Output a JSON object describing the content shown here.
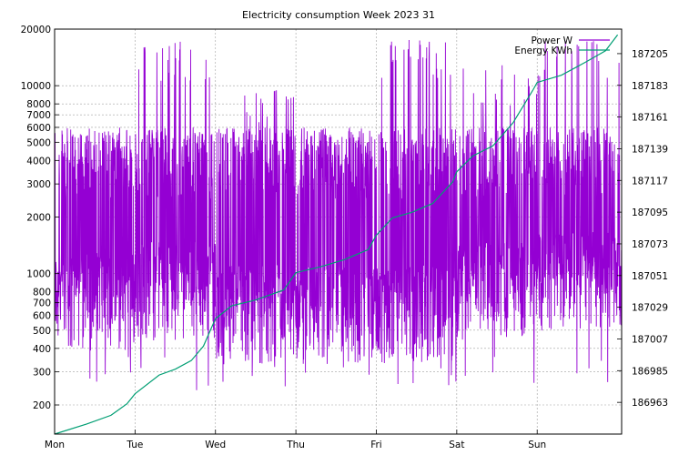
{
  "chart_data": {
    "type": "line",
    "title": "Electricity consumption Week 2023 31",
    "xlabel": "",
    "ylabel": "",
    "y2label": "",
    "x_ticks": [
      "Mon",
      "Tue",
      "Wed",
      "Thu",
      "Fri",
      "Sat",
      "Sun"
    ],
    "x_range_days": [
      0,
      7.05
    ],
    "y_scale": "log",
    "y_range": [
      140,
      20000
    ],
    "y_ticks": [
      200,
      300,
      400,
      500,
      600,
      700,
      800,
      1000,
      2000,
      3000,
      4000,
      5000,
      6000,
      7000,
      8000,
      10000,
      20000
    ],
    "y_tick_labels": [
      "200",
      "300",
      "400",
      "500",
      "600",
      "700",
      "800",
      "1000",
      "2000",
      "3000",
      "4000",
      "5000",
      "6000",
      "7000",
      "8000",
      "10000",
      "20000"
    ],
    "y2_range": [
      186941,
      187222
    ],
    "y2_ticks": [
      186963,
      186985,
      187007,
      187029,
      187051,
      187073,
      187095,
      187117,
      187139,
      187161,
      187183,
      187205
    ],
    "grid": true,
    "legend_position": "top-right",
    "series": [
      {
        "name": "Power W",
        "axis": "y",
        "color": "#9400d3",
        "day_profile_note_values_W": [
          {
            "day": 0,
            "base": 700,
            "peak": 6000
          },
          {
            "day": 1,
            "base": 800,
            "peak": 17500
          },
          {
            "day": 2,
            "base": 600,
            "peak": 10000
          },
          {
            "day": 3,
            "base": 600,
            "peak": 5000
          },
          {
            "day": 4,
            "base": 600,
            "peak": 17500
          },
          {
            "day": 5,
            "base": 800,
            "peak": 13000
          },
          {
            "day": 6,
            "base": 900,
            "peak": 17500
          }
        ]
      },
      {
        "name": "Energy KWh",
        "axis": "y2",
        "color": "#009e73",
        "x_days": [
          0.0,
          0.4,
          0.7,
          0.9,
          1.0,
          1.3,
          1.5,
          1.7,
          1.85,
          2.0,
          2.2,
          2.5,
          2.85,
          3.0,
          3.3,
          3.6,
          3.9,
          4.0,
          4.2,
          4.45,
          4.7,
          4.95,
          5.0,
          5.2,
          5.45,
          5.7,
          5.95,
          6.0,
          6.3,
          6.6,
          6.85,
          7.0
        ],
        "values": [
          186941,
          186948,
          186954,
          186962,
          186969,
          186982,
          186986,
          186992,
          187002,
          187021,
          187030,
          187034,
          187041,
          187053,
          187057,
          187062,
          187069,
          187079,
          187091,
          187095,
          187101,
          187116,
          187123,
          187134,
          187141,
          187157,
          187180,
          187185,
          187190,
          187199,
          187207,
          187218
        ]
      }
    ]
  }
}
